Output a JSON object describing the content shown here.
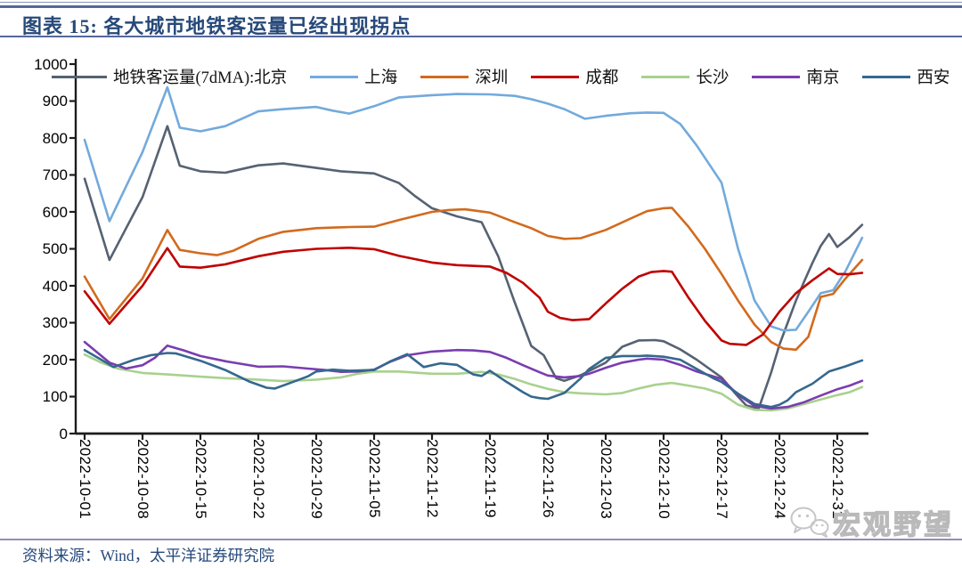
{
  "header": {
    "title": "图表 15:  各大城市地铁客运量已经出现拐点"
  },
  "footer": {
    "source": "资料来源：Wind，太平洋证券研究院"
  },
  "watermark": {
    "label": "宏观野望",
    "icon": "wechat-chat-bubbles-icon"
  },
  "colors": {
    "title_text": "#27497a",
    "top_rule": "#56679b",
    "bottom_rule": "#8f8fb8",
    "axis": "#1c1c1c",
    "watermark_gray": "#b9b9b9"
  },
  "chart_data": {
    "type": "line",
    "title": "各大城市地铁客运量已经出现拐点",
    "xlabel": "",
    "ylabel": "",
    "legend_position": "top",
    "grid": false,
    "y_axis": {
      "min": 0,
      "max": 1000,
      "step": 100,
      "tick_labels": [
        "0",
        "100",
        "200",
        "300",
        "400",
        "500",
        "600",
        "700",
        "800",
        "900",
        "1000"
      ]
    },
    "x_axis": {
      "days_per_tick": 7,
      "domain_days": [
        0,
        94
      ],
      "tick_labels": [
        "2022-10-01",
        "2022-10-08",
        "2022-10-15",
        "2022-10-22",
        "2022-10-29",
        "2022-11-05",
        "2022-11-12",
        "2022-11-19",
        "2022-11-26",
        "2022-12-03",
        "2022-12-10",
        "2022-12-17",
        "2022-12-24",
        "2022-12-31"
      ]
    },
    "series": [
      {
        "id": "beijing",
        "legend_label": "地铁客运量(7dMA):北京",
        "city": "北京",
        "color": "#566273",
        "points": [
          [
            0,
            690
          ],
          [
            3,
            470
          ],
          [
            5,
            555
          ],
          [
            7,
            640
          ],
          [
            10,
            832
          ],
          [
            11.5,
            725
          ],
          [
            14,
            710
          ],
          [
            17,
            706
          ],
          [
            21,
            726
          ],
          [
            24,
            731
          ],
          [
            28,
            719
          ],
          [
            31,
            710
          ],
          [
            35,
            704
          ],
          [
            38,
            678
          ],
          [
            40,
            642
          ],
          [
            42,
            610
          ],
          [
            45,
            588
          ],
          [
            48,
            572
          ],
          [
            50,
            480
          ],
          [
            52,
            355
          ],
          [
            54,
            237
          ],
          [
            55.5,
            212
          ],
          [
            57,
            150
          ],
          [
            58,
            143
          ],
          [
            60,
            158
          ],
          [
            63,
            192
          ],
          [
            65,
            235
          ],
          [
            67,
            252
          ],
          [
            69,
            253
          ],
          [
            70,
            250
          ],
          [
            72,
            228
          ],
          [
            74,
            200
          ],
          [
            77,
            152
          ],
          [
            79,
            100
          ],
          [
            80,
            76
          ],
          [
            81.5,
            68
          ],
          [
            83,
            165
          ],
          [
            84,
            240
          ],
          [
            85,
            300
          ],
          [
            86,
            360
          ],
          [
            87,
            412
          ],
          [
            88,
            462
          ],
          [
            89,
            508
          ],
          [
            90,
            540
          ],
          [
            91,
            505
          ],
          [
            92.5,
            532
          ],
          [
            94,
            565
          ]
        ]
      },
      {
        "id": "shanghai",
        "legend_label": "上海",
        "city": "上海",
        "color": "#72aadc",
        "points": [
          [
            0,
            795
          ],
          [
            3,
            575
          ],
          [
            7,
            762
          ],
          [
            10,
            937
          ],
          [
            11.5,
            828
          ],
          [
            14,
            818
          ],
          [
            17,
            832
          ],
          [
            21,
            872
          ],
          [
            24,
            878
          ],
          [
            28,
            884
          ],
          [
            30,
            874
          ],
          [
            32,
            866
          ],
          [
            35,
            886
          ],
          [
            38,
            910
          ],
          [
            42,
            916
          ],
          [
            45,
            919
          ],
          [
            49,
            918
          ],
          [
            52,
            914
          ],
          [
            54,
            905
          ],
          [
            56,
            893
          ],
          [
            58,
            878
          ],
          [
            60.5,
            852
          ],
          [
            63,
            860
          ],
          [
            66,
            867
          ],
          [
            68,
            869
          ],
          [
            70,
            868
          ],
          [
            72,
            838
          ],
          [
            74,
            780
          ],
          [
            77,
            679
          ],
          [
            79,
            500
          ],
          [
            81,
            360
          ],
          [
            83,
            290
          ],
          [
            84.5,
            279
          ],
          [
            86,
            281
          ],
          [
            87.5,
            330
          ],
          [
            89,
            380
          ],
          [
            90.5,
            388
          ],
          [
            92,
            440
          ],
          [
            94,
            530
          ]
        ]
      },
      {
        "id": "shenzhen",
        "legend_label": "深圳",
        "city": "深圳",
        "color": "#d26a1e",
        "points": [
          [
            0,
            425
          ],
          [
            3,
            310
          ],
          [
            7,
            420
          ],
          [
            10,
            551
          ],
          [
            11.5,
            497
          ],
          [
            14,
            488
          ],
          [
            16,
            483
          ],
          [
            18,
            495
          ],
          [
            21,
            527
          ],
          [
            24,
            546
          ],
          [
            28,
            556
          ],
          [
            32,
            559
          ],
          [
            35,
            560
          ],
          [
            38,
            578
          ],
          [
            42,
            600
          ],
          [
            44,
            605
          ],
          [
            46,
            607
          ],
          [
            49,
            598
          ],
          [
            52,
            572
          ],
          [
            54,
            556
          ],
          [
            56,
            535
          ],
          [
            58,
            527
          ],
          [
            60,
            529
          ],
          [
            63,
            551
          ],
          [
            66,
            582
          ],
          [
            68,
            602
          ],
          [
            70,
            610
          ],
          [
            71,
            611
          ],
          [
            73,
            560
          ],
          [
            75,
            500
          ],
          [
            77,
            432
          ],
          [
            79,
            360
          ],
          [
            81,
            295
          ],
          [
            83,
            248
          ],
          [
            84.5,
            230
          ],
          [
            86,
            227
          ],
          [
            87.5,
            262
          ],
          [
            89,
            370
          ],
          [
            90.5,
            378
          ],
          [
            92,
            420
          ],
          [
            94,
            470
          ]
        ]
      },
      {
        "id": "chengdu",
        "legend_label": "成都",
        "city": "成都",
        "color": "#c00000",
        "points": [
          [
            0,
            385
          ],
          [
            3,
            297
          ],
          [
            7,
            400
          ],
          [
            10,
            502
          ],
          [
            11.5,
            452
          ],
          [
            14,
            449
          ],
          [
            17,
            458
          ],
          [
            21,
            480
          ],
          [
            24,
            492
          ],
          [
            28,
            500
          ],
          [
            32,
            503
          ],
          [
            35,
            499
          ],
          [
            38,
            481
          ],
          [
            42,
            463
          ],
          [
            45,
            456
          ],
          [
            49,
            452
          ],
          [
            51,
            435
          ],
          [
            53,
            408
          ],
          [
            55,
            368
          ],
          [
            56,
            330
          ],
          [
            57.5,
            313
          ],
          [
            59,
            307
          ],
          [
            61,
            310
          ],
          [
            63,
            352
          ],
          [
            65,
            392
          ],
          [
            67,
            425
          ],
          [
            68.5,
            437
          ],
          [
            70,
            440
          ],
          [
            71,
            438
          ],
          [
            73,
            368
          ],
          [
            75,
            305
          ],
          [
            77,
            252
          ],
          [
            78,
            243
          ],
          [
            80,
            240
          ],
          [
            82,
            268
          ],
          [
            84,
            330
          ],
          [
            86,
            380
          ],
          [
            88,
            415
          ],
          [
            90,
            447
          ],
          [
            91,
            432
          ],
          [
            92.5,
            431
          ],
          [
            94,
            435
          ]
        ]
      },
      {
        "id": "changsha",
        "legend_label": "长沙",
        "city": "长沙",
        "color": "#a9d18e",
        "points": [
          [
            0,
            214
          ],
          [
            2,
            192
          ],
          [
            4,
            176
          ],
          [
            7,
            164
          ],
          [
            10,
            160
          ],
          [
            14,
            154
          ],
          [
            17,
            150
          ],
          [
            21,
            146
          ],
          [
            24,
            142
          ],
          [
            28,
            146
          ],
          [
            31,
            152
          ],
          [
            33,
            162
          ],
          [
            35,
            168
          ],
          [
            38,
            168
          ],
          [
            42,
            162
          ],
          [
            45,
            162
          ],
          [
            48,
            167
          ],
          [
            50,
            160
          ],
          [
            52,
            148
          ],
          [
            54,
            133
          ],
          [
            56,
            121
          ],
          [
            58,
            112
          ],
          [
            60,
            109
          ],
          [
            63,
            106
          ],
          [
            65,
            110
          ],
          [
            67,
            122
          ],
          [
            69,
            132
          ],
          [
            71,
            137
          ],
          [
            73,
            130
          ],
          [
            75,
            122
          ],
          [
            77,
            108
          ],
          [
            79,
            78
          ],
          [
            81,
            64
          ],
          [
            83,
            63
          ],
          [
            85,
            68
          ],
          [
            87,
            80
          ],
          [
            89,
            92
          ],
          [
            91,
            104
          ],
          [
            92.5,
            112
          ],
          [
            94,
            126
          ]
        ]
      },
      {
        "id": "nanjing",
        "legend_label": "南京",
        "city": "南京",
        "color": "#7a3db0",
        "points": [
          [
            0,
            248
          ],
          [
            3,
            192
          ],
          [
            5,
            176
          ],
          [
            7,
            185
          ],
          [
            8.5,
            205
          ],
          [
            10,
            238
          ],
          [
            12,
            225
          ],
          [
            14,
            210
          ],
          [
            17,
            196
          ],
          [
            21,
            181
          ],
          [
            24,
            182
          ],
          [
            27,
            176
          ],
          [
            29,
            172
          ],
          [
            31,
            167
          ],
          [
            33,
            168
          ],
          [
            35,
            173
          ],
          [
            37,
            195
          ],
          [
            39,
            212
          ],
          [
            42,
            222
          ],
          [
            45,
            226
          ],
          [
            47,
            225
          ],
          [
            49,
            221
          ],
          [
            51,
            205
          ],
          [
            53,
            185
          ],
          [
            55,
            166
          ],
          [
            56,
            157
          ],
          [
            58,
            152
          ],
          [
            60,
            156
          ],
          [
            61,
            162
          ],
          [
            63,
            178
          ],
          [
            65,
            192
          ],
          [
            67,
            200
          ],
          [
            68,
            203
          ],
          [
            70,
            200
          ],
          [
            72,
            186
          ],
          [
            74,
            168
          ],
          [
            76,
            155
          ],
          [
            77,
            148
          ],
          [
            79,
            105
          ],
          [
            81,
            75
          ],
          [
            83,
            68
          ],
          [
            85,
            72
          ],
          [
            87,
            85
          ],
          [
            89,
            103
          ],
          [
            91,
            120
          ],
          [
            92.5,
            130
          ],
          [
            94,
            143
          ]
        ]
      },
      {
        "id": "xian",
        "legend_label": "西安",
        "city": "西安",
        "color": "#35688e",
        "points": [
          [
            0,
            226
          ],
          [
            2,
            200
          ],
          [
            3.5,
            180
          ],
          [
            6,
            200
          ],
          [
            8,
            212
          ],
          [
            10,
            218
          ],
          [
            11,
            217
          ],
          [
            14,
            197
          ],
          [
            17,
            172
          ],
          [
            20,
            140
          ],
          [
            22,
            124
          ],
          [
            23,
            122
          ],
          [
            25,
            138
          ],
          [
            27,
            155
          ],
          [
            28,
            168
          ],
          [
            30,
            173
          ],
          [
            32,
            170
          ],
          [
            35,
            172
          ],
          [
            37,
            196
          ],
          [
            39,
            215
          ],
          [
            41,
            180
          ],
          [
            43,
            190
          ],
          [
            45,
            186
          ],
          [
            47,
            160
          ],
          [
            48,
            156
          ],
          [
            49,
            170
          ],
          [
            51,
            140
          ],
          [
            53,
            112
          ],
          [
            54,
            100
          ],
          [
            55,
            96
          ],
          [
            56,
            94
          ],
          [
            58,
            110
          ],
          [
            60,
            150
          ],
          [
            61,
            175
          ],
          [
            63,
            205
          ],
          [
            65,
            210
          ],
          [
            67,
            210
          ],
          [
            68,
            211
          ],
          [
            70,
            208
          ],
          [
            72,
            200
          ],
          [
            74,
            175
          ],
          [
            76,
            150
          ],
          [
            77,
            140
          ],
          [
            79,
            108
          ],
          [
            81,
            80
          ],
          [
            83,
            72
          ],
          [
            84,
            78
          ],
          [
            85,
            90
          ],
          [
            86,
            112
          ],
          [
            88,
            135
          ],
          [
            90,
            168
          ],
          [
            92,
            182
          ],
          [
            94,
            198
          ]
        ]
      }
    ]
  }
}
